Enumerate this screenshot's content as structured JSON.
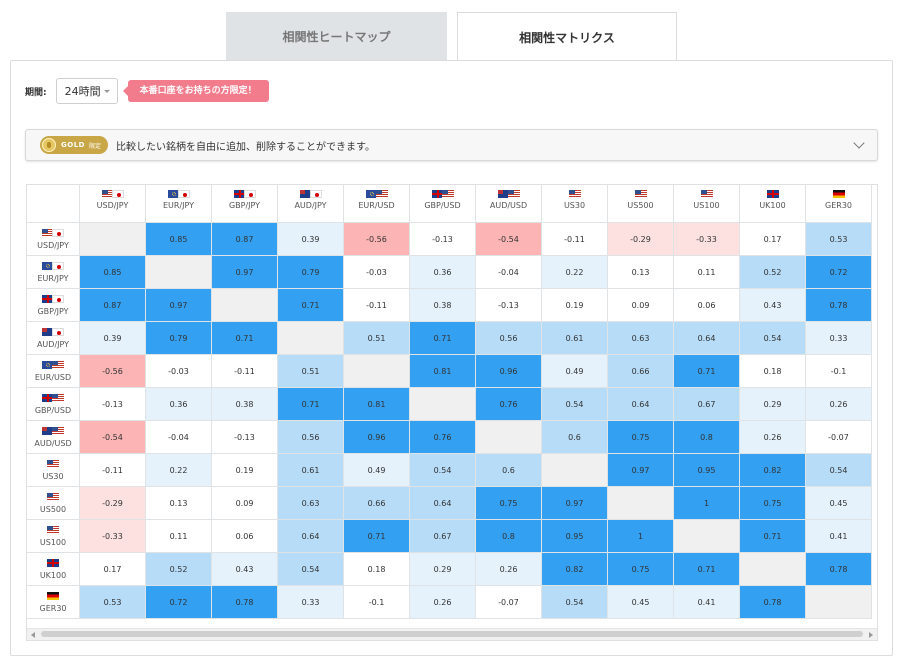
{
  "tabs": [
    {
      "label": "相関性ヒートマップ",
      "active": false
    },
    {
      "label": "相関性マトリクス",
      "active": true
    }
  ],
  "period": {
    "label": "期間:",
    "value": "24時間"
  },
  "badge": "本番口座をお持ちの方限定！",
  "gold": {
    "pill_text": "GOLD",
    "pill_sub": "限定",
    "message": "比較したい銘柄を自由に追加、削除することができます。"
  },
  "colors": {
    "strong_pos": "#33a0f2",
    "mid_pos": "#b7dcf8",
    "weak_pos": "#e5f2fc",
    "neutral": "#ffffff",
    "weak_neg": "#fde1e1",
    "strong_neg": "#fcb4b4",
    "self": "#f0f0f0"
  },
  "matrix": {
    "instruments": [
      {
        "label": "USD/JPY",
        "flags": [
          "us",
          "jp"
        ]
      },
      {
        "label": "EUR/JPY",
        "flags": [
          "eu",
          "jp"
        ]
      },
      {
        "label": "GBP/JPY",
        "flags": [
          "gb",
          "jp"
        ]
      },
      {
        "label": "AUD/JPY",
        "flags": [
          "au",
          "jp"
        ]
      },
      {
        "label": "EUR/USD",
        "flags": [
          "eu",
          "us"
        ]
      },
      {
        "label": "GBP/USD",
        "flags": [
          "gb",
          "us"
        ]
      },
      {
        "label": "AUD/USD",
        "flags": [
          "au",
          "us"
        ]
      },
      {
        "label": "US30",
        "flags": [
          "us"
        ]
      },
      {
        "label": "US500",
        "flags": [
          "us"
        ]
      },
      {
        "label": "US100",
        "flags": [
          "us"
        ]
      },
      {
        "label": "UK100",
        "flags": [
          "gb"
        ]
      },
      {
        "label": "GER30",
        "flags": [
          "de"
        ]
      }
    ],
    "values": [
      [
        null,
        "0.85",
        "0.87",
        "0.39",
        "-0.56",
        "-0.13",
        "-0.54",
        "-0.11",
        "-0.29",
        "-0.33",
        "0.17",
        "0.53"
      ],
      [
        "0.85",
        null,
        "0.97",
        "0.79",
        "-0.03",
        "0.36",
        "-0.04",
        "0.22",
        "0.13",
        "0.11",
        "0.52",
        "0.72"
      ],
      [
        "0.87",
        "0.97",
        null,
        "0.71",
        "-0.11",
        "0.38",
        "-0.13",
        "0.19",
        "0.09",
        "0.06",
        "0.43",
        "0.78"
      ],
      [
        "0.39",
        "0.79",
        "0.71",
        null,
        "0.51",
        "0.71",
        "0.56",
        "0.61",
        "0.63",
        "0.64",
        "0.54",
        "0.33"
      ],
      [
        "-0.56",
        "-0.03",
        "-0.11",
        "0.51",
        null,
        "0.81",
        "0.96",
        "0.49",
        "0.66",
        "0.71",
        "0.18",
        "-0.1"
      ],
      [
        "-0.13",
        "0.36",
        "0.38",
        "0.71",
        "0.81",
        null,
        "0.76",
        "0.54",
        "0.64",
        "0.67",
        "0.29",
        "0.26"
      ],
      [
        "-0.54",
        "-0.04",
        "-0.13",
        "0.56",
        "0.96",
        "0.76",
        null,
        "0.6",
        "0.75",
        "0.8",
        "0.26",
        "-0.07"
      ],
      [
        "-0.11",
        "0.22",
        "0.19",
        "0.61",
        "0.49",
        "0.54",
        "0.6",
        null,
        "0.97",
        "0.95",
        "0.82",
        "0.54"
      ],
      [
        "-0.29",
        "0.13",
        "0.09",
        "0.63",
        "0.66",
        "0.64",
        "0.75",
        "0.97",
        null,
        "1",
        "0.75",
        "0.45"
      ],
      [
        "-0.33",
        "0.11",
        "0.06",
        "0.64",
        "0.71",
        "0.67",
        "0.8",
        "0.95",
        "1",
        null,
        "0.71",
        "0.41"
      ],
      [
        "0.17",
        "0.52",
        "0.43",
        "0.54",
        "0.18",
        "0.29",
        "0.26",
        "0.82",
        "0.75",
        "0.71",
        null,
        "0.78"
      ],
      [
        "0.53",
        "0.72",
        "0.78",
        "0.33",
        "-0.1",
        "0.26",
        "-0.07",
        "0.54",
        "0.45",
        "0.41",
        "0.78",
        null
      ]
    ]
  }
}
